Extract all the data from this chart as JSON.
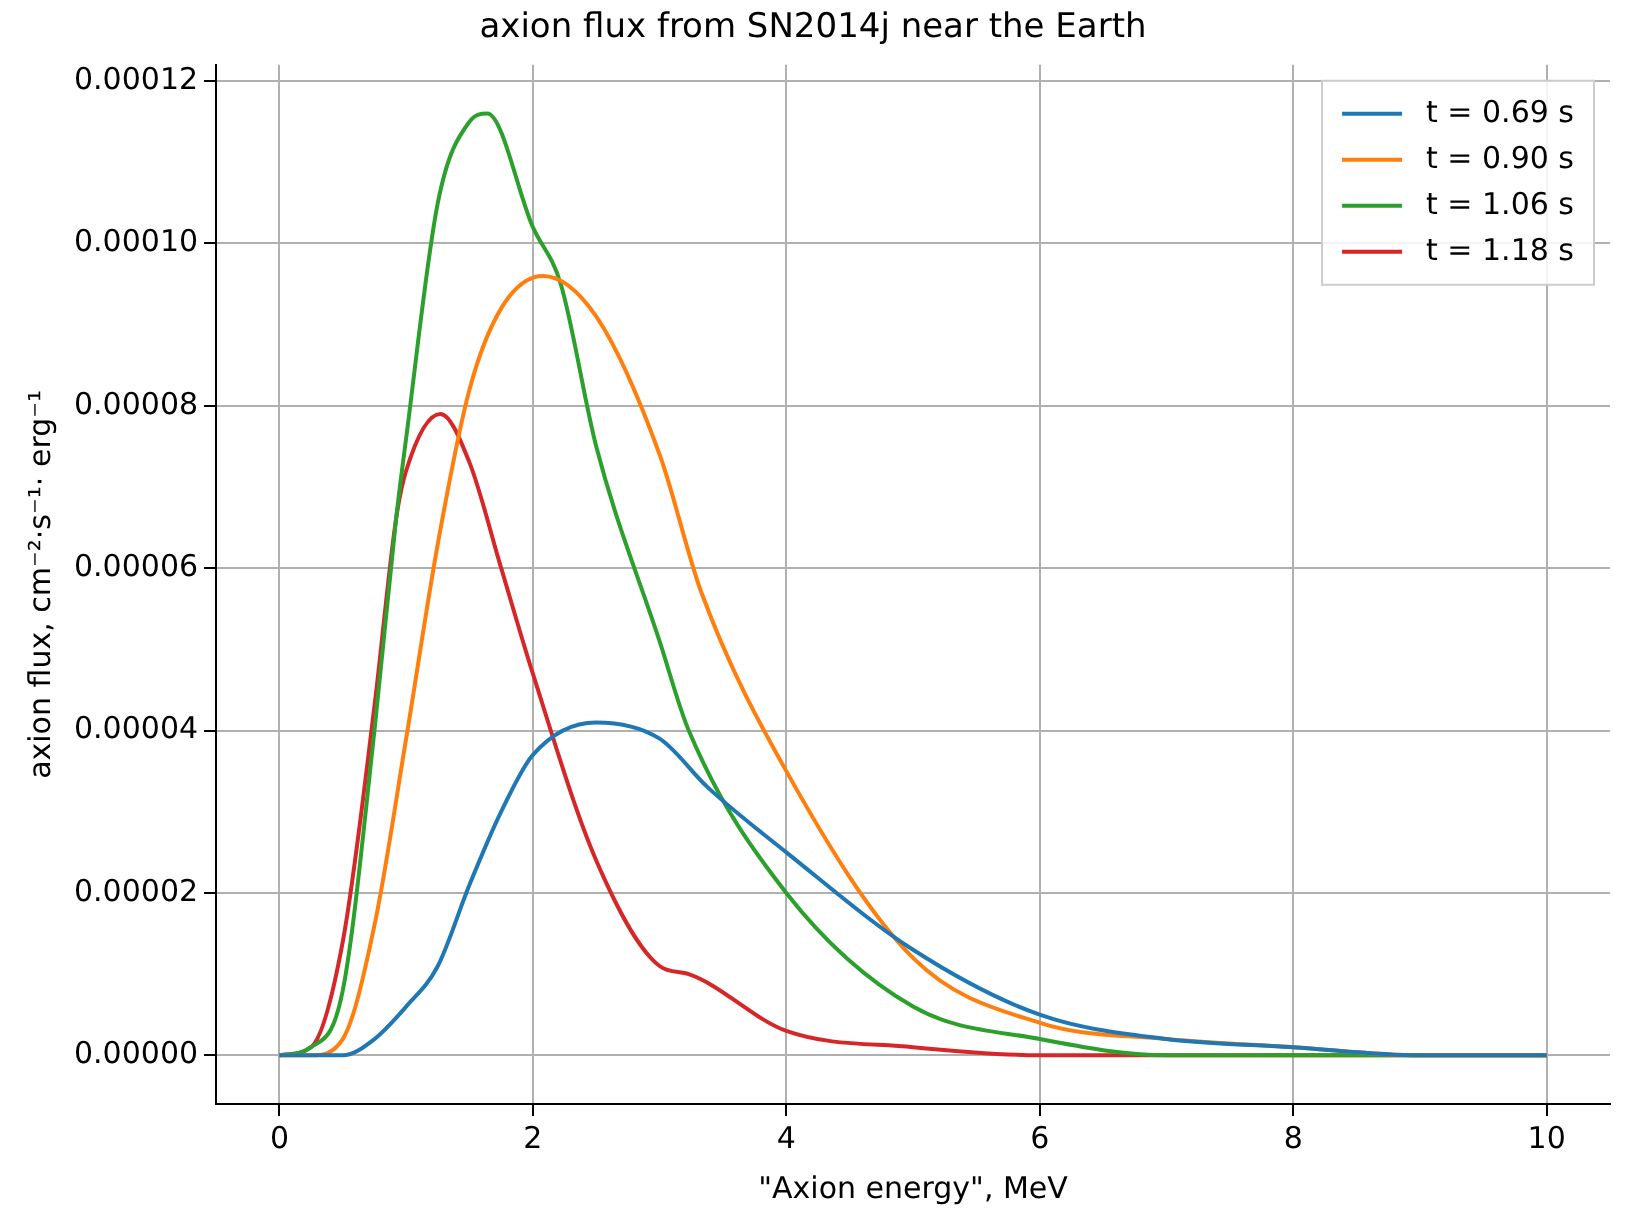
{
  "chart_data": {
    "type": "line",
    "title": "axion flux from SN2014j near the Earth",
    "xlabel": "\"Axion energy\", MeV",
    "ylabel": "axion flux, cm⁻²·s⁻¹· erg⁻¹",
    "series": [
      {
        "name": "t = 0.69 s",
        "color": "#1f77b4",
        "x": [
          0,
          0.25,
          0.5,
          0.75,
          1,
          1.25,
          1.5,
          1.75,
          2,
          2.5,
          3,
          3.38,
          4,
          5,
          6,
          7,
          8,
          9,
          10
        ],
        "values": [
          0,
          0,
          0,
          2e-06,
          6e-06,
          1.1e-05,
          2.1e-05,
          3e-05,
          3.7e-05,
          4.1e-05,
          3.9e-05,
          3.3e-05,
          2.5e-05,
          1.3e-05,
          5e-06,
          2e-06,
          1e-06,
          0,
          0
        ]
      },
      {
        "name": "t = 0.90 s",
        "color": "#ff7f0e",
        "x": [
          0,
          0.25,
          0.5,
          0.75,
          1,
          1.25,
          1.5,
          1.75,
          2.08,
          2.5,
          3,
          3.33,
          4,
          5,
          6,
          7,
          8,
          9,
          10
        ],
        "values": [
          0,
          0,
          2e-06,
          1.6e-05,
          3.9e-05,
          6.3e-05,
          8.2e-05,
          9.2e-05,
          9.6e-05,
          9.1e-05,
          7.4e-05,
          5.7e-05,
          3.5e-05,
          1.2e-05,
          4e-06,
          2e-06,
          1e-06,
          0,
          0
        ]
      },
      {
        "name": "t = 1.06 s",
        "color": "#2ca02c",
        "x": [
          0,
          0.25,
          0.5,
          0.75,
          0.92,
          1,
          1.25,
          1.5,
          1.64,
          2,
          2.22,
          2.5,
          3,
          3.23,
          4,
          5,
          6,
          7,
          8,
          10
        ],
        "values": [
          0,
          1e-06,
          8e-06,
          4e-05,
          6.6e-05,
          7.6e-05,
          0.000105,
          0.000115,
          0.000116,
          0.000102,
          9.5e-05,
          7.5e-05,
          5.1e-05,
          4e-05,
          2e-05,
          6e-06,
          2e-06,
          0,
          0,
          0
        ]
      },
      {
        "name": "t = 1.18 s",
        "color": "#d62728",
        "x": [
          0,
          0.25,
          0.5,
          0.75,
          0.92,
          1,
          1.27,
          1.5,
          1.75,
          2,
          2.5,
          3,
          3.23,
          4,
          5,
          6,
          7,
          10
        ],
        "values": [
          0,
          1e-06,
          1.4e-05,
          4.3e-05,
          6.6e-05,
          7.2e-05,
          7.9e-05,
          7.3e-05,
          6e-05,
          4.7e-05,
          2.4e-05,
          1.1e-05,
          1e-05,
          3e-06,
          1e-06,
          0,
          0,
          0
        ]
      }
    ],
    "xlim": [
      -0.5,
      10.5
    ],
    "xticks": [
      0,
      2,
      4,
      6,
      8,
      10
    ],
    "ylim": [
      -6e-06,
      0.000122
    ],
    "yticks": [
      {
        "value": 0,
        "label": "0.00000"
      },
      {
        "value": 2e-05,
        "label": "0.00002"
      },
      {
        "value": 4e-05,
        "label": "0.00004"
      },
      {
        "value": 6e-05,
        "label": "0.00006"
      },
      {
        "value": 8e-05,
        "label": "0.00008"
      },
      {
        "value": 0.0001,
        "label": "0.00010"
      },
      {
        "value": 0.00012,
        "label": "0.00012"
      }
    ],
    "grid": true,
    "legend": "top right",
    "marker": "none",
    "line_style": "solid"
  }
}
